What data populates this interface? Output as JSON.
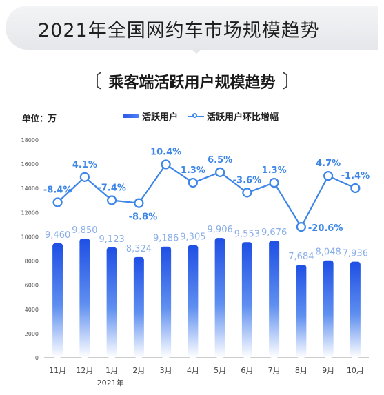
{
  "header": {
    "title": "2021年全国网约车市场规模趋势",
    "chart_title": "乘客端活跃用户规模趋势",
    "bracket_left": "〔",
    "bracket_right": "〕"
  },
  "unit_label": "单位：万",
  "legend": {
    "bar_label": "活跃用户",
    "line_label": "活跃用户环比增幅"
  },
  "year_label": "2021年",
  "colors": {
    "bar_top": "#1f4fe4",
    "bar_bottom": "#ffffff",
    "line": "#3d86e8",
    "bar_label": "#8aaee8",
    "line_label": "#3d86e8"
  },
  "chart_data": {
    "type": "bar",
    "title": "乘客端活跃用户规模趋势",
    "categories": [
      "11月",
      "12月",
      "1月",
      "2月",
      "3月",
      "4月",
      "5月",
      "6月",
      "7月",
      "8月",
      "9月",
      "10月"
    ],
    "ylim": [
      0,
      18000
    ],
    "yticks": [
      0,
      2000,
      4000,
      6000,
      8000,
      10000,
      12000,
      14000,
      16000,
      18000
    ],
    "series": [
      {
        "name": "活跃用户",
        "type": "bar",
        "values": [
          9460,
          9850,
          9123,
          8324,
          9186,
          9305,
          9906,
          9553,
          9676,
          7684,
          8048,
          7936
        ],
        "labels": [
          "9,460",
          "9,850",
          "9,123",
          "8,324",
          "9,186",
          "9,305",
          "9,906",
          "9,553",
          "9,676",
          "7,684",
          "8,048",
          "7,936"
        ]
      },
      {
        "name": "活跃用户环比增幅",
        "type": "line",
        "values": [
          -8.4,
          4.1,
          -7.4,
          -8.8,
          10.4,
          1.3,
          6.5,
          -3.6,
          1.3,
          -20.6,
          4.7,
          -1.4
        ],
        "labels": [
          "-8.4%",
          "4.1%",
          "-7.4%",
          "-8.8%",
          "10.4%",
          "1.3%",
          "6.5%",
          "-3.6%",
          "1.3%",
          "-20.6%",
          "4.7%",
          "-1.4%"
        ]
      }
    ]
  }
}
